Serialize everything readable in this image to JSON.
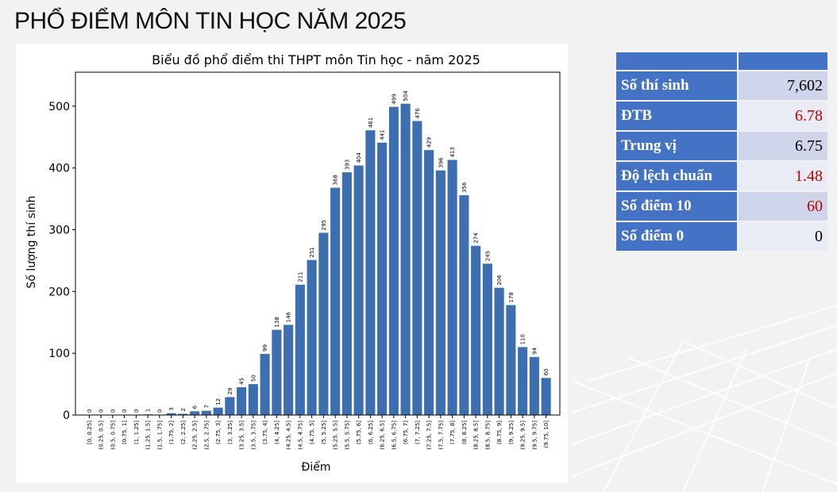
{
  "page": {
    "title": "PHỔ ĐIỂM MÔN TIN HỌC NĂM 2025"
  },
  "chart_data": {
    "type": "bar",
    "title": "Biểu đồ phổ điểm thi THPT môn Tin học - năm 2025",
    "xlabel": "Điểm",
    "ylabel": "Số lượng thí sinh",
    "ylim": [
      0,
      555
    ],
    "yticks": [
      0,
      100,
      200,
      300,
      400,
      500
    ],
    "bar_color": "#3d6fb0",
    "categories": [
      "[0, 0.25]",
      "(0.25, 0.5]",
      "(0.5, 0.75]",
      "(0.75, 1]",
      "(1, 1.25]",
      "(1.25, 1.5]",
      "(1.5, 1.75]",
      "(1.75, 2]",
      "(2, 2.25]",
      "(2.25, 2.5]",
      "(2.5, 2.75]",
      "(2.75, 3]",
      "(3, 3.25]",
      "(3.25, 3.5]",
      "(3.5, 3.75]",
      "(3.75, 4]",
      "(4, 4.25]",
      "(4.25, 4.5]",
      "(4.5, 4.75]",
      "(4.75, 5]",
      "(5, 5.25]",
      "(5.25, 5.5]",
      "(5.5, 5.75]",
      "(5.75, 6]",
      "(6, 6.25]",
      "(6.25, 6.5]",
      "(6.5, 6.75]",
      "(6.75, 7]",
      "(7, 7.25]",
      "(7.25, 7.5]",
      "(7.5, 7.75]",
      "(7.75, 8]",
      "(8, 8.25]",
      "(8.25, 8.5]",
      "(8.5, 8.75]",
      "(8.75, 9]",
      "(9, 9.25]",
      "(9.25, 9.5]",
      "(9.5, 9.75]",
      "(9.75, 10]"
    ],
    "values": [
      0,
      0,
      0,
      0,
      0,
      1,
      0,
      3,
      2,
      6,
      7,
      12,
      29,
      45,
      50,
      99,
      138,
      146,
      211,
      251,
      295,
      368,
      393,
      404,
      461,
      441,
      499,
      504,
      476,
      429,
      396,
      413,
      356,
      274,
      245,
      206,
      178,
      110,
      94,
      60
    ],
    "grid": false,
    "legend": "none"
  },
  "stats": {
    "rows": [
      {
        "label": "Số thí sinh",
        "value": "7,602",
        "color": "black"
      },
      {
        "label": "ĐTB",
        "value": "6.78",
        "color": "red"
      },
      {
        "label": "Trung vị",
        "value": "6.75",
        "color": "black"
      },
      {
        "label": "Độ lệch chuẩn",
        "value": "1.48",
        "color": "red"
      },
      {
        "label": "Số điểm 10",
        "value": "60",
        "color": "red"
      },
      {
        "label": "Số điểm 0",
        "value": "0",
        "color": "black"
      }
    ]
  }
}
